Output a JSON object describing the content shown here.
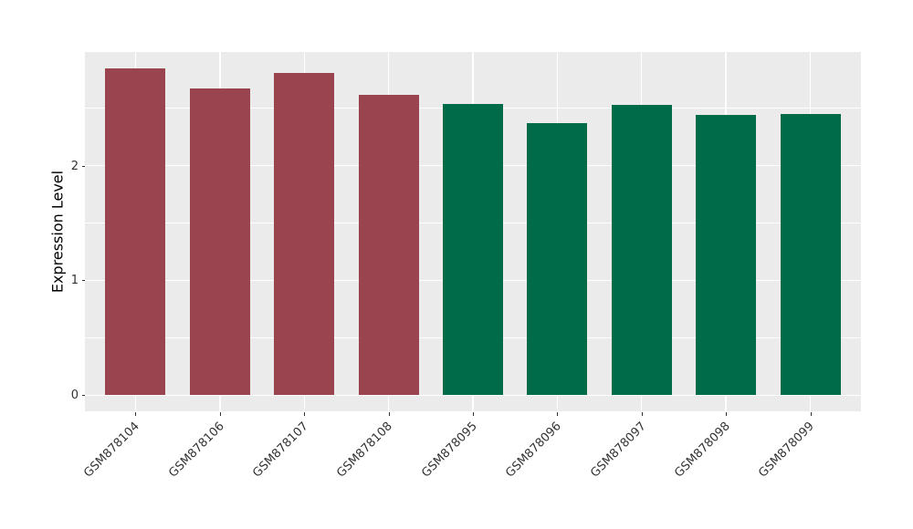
{
  "figure": {
    "background": "#FFFFFF",
    "panel_background": "#EBEBEB",
    "grid_color": "#FFFFFF",
    "axis_text_color": "#333333",
    "axis_title_color": "#000000",
    "tick_mark_color": "#333333"
  },
  "chart_data": {
    "type": "bar",
    "title": "",
    "xlabel": "",
    "ylabel": "Expression Level",
    "categories": [
      "GSM878104",
      "GSM878106",
      "GSM878107",
      "GSM878108",
      "GSM878095",
      "GSM878096",
      "GSM878097",
      "GSM878098",
      "GSM878099"
    ],
    "values": [
      2.85,
      2.67,
      2.81,
      2.62,
      2.54,
      2.37,
      2.53,
      2.44,
      2.45
    ],
    "bar_colors": [
      "#9A4450",
      "#9A4450",
      "#9A4450",
      "#9A4450",
      "#006B48",
      "#006B48",
      "#006B48",
      "#006B48",
      "#006B48"
    ],
    "color_groups": [
      {
        "color": "#9A4450",
        "categories": [
          "GSM878104",
          "GSM878106",
          "GSM878107",
          "GSM878108"
        ]
      },
      {
        "color": "#006B48",
        "categories": [
          "GSM878095",
          "GSM878096",
          "GSM878097",
          "GSM878098",
          "GSM878099"
        ]
      }
    ],
    "ylim": [
      -0.14,
      2.99
    ],
    "yticks": [
      0,
      1,
      2
    ],
    "yminor": [
      0.5,
      1.5,
      2.5
    ],
    "grid": true,
    "legend_position": "none",
    "x_label_rotation": 45
  }
}
